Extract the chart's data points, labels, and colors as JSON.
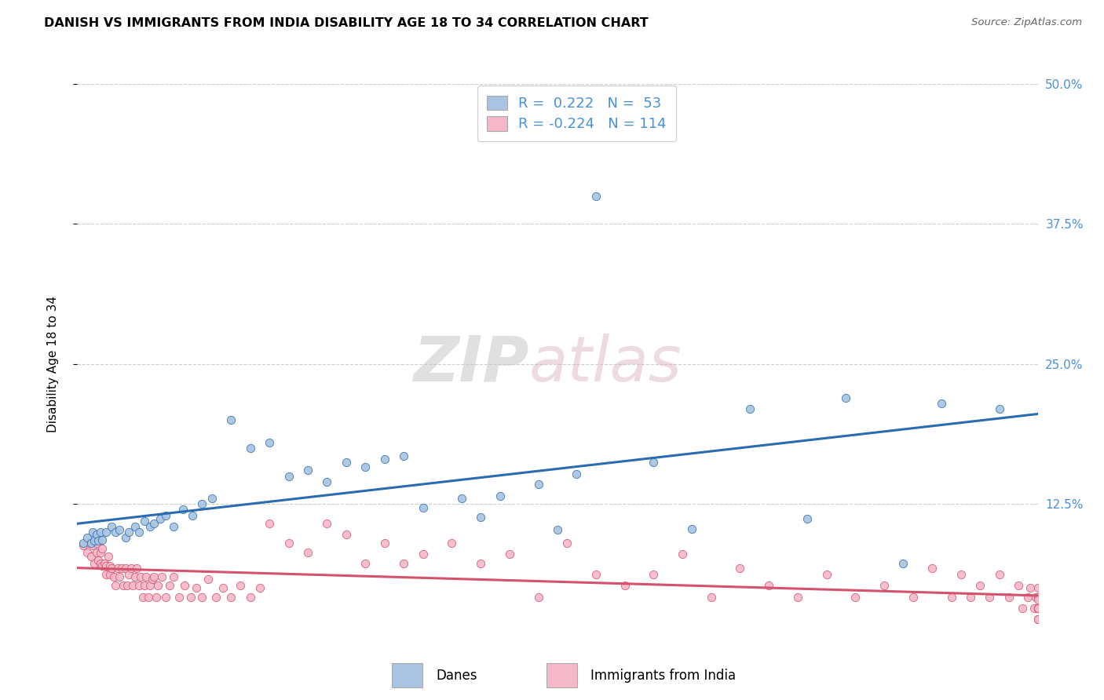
{
  "title": "DANISH VS IMMIGRANTS FROM INDIA DISABILITY AGE 18 TO 34 CORRELATION CHART",
  "source": "Source: ZipAtlas.com",
  "ylabel": "Disability Age 18 to 34",
  "xlim": [
    0.0,
    0.5
  ],
  "ylim": [
    0.0,
    0.5
  ],
  "danes_color": "#a8c4e0",
  "danes_line_color": "#2b6cb0",
  "india_color": "#f4b8c8",
  "india_line_color": "#d4526e",
  "right_tick_color": "#4a90d9",
  "legend_danes_label": "Danes",
  "legend_india_label": "Immigrants from India",
  "danes_R": 0.222,
  "danes_N": 53,
  "india_R": -0.224,
  "india_N": 114,
  "watermark_zip": "ZIP",
  "watermark_atlas": "atlas",
  "danes_scatter_x": [
    0.003,
    0.005,
    0.007,
    0.008,
    0.009,
    0.01,
    0.011,
    0.012,
    0.013,
    0.015,
    0.018,
    0.02,
    0.022,
    0.025,
    0.027,
    0.03,
    0.032,
    0.035,
    0.038,
    0.04,
    0.043,
    0.046,
    0.05,
    0.055,
    0.06,
    0.065,
    0.07,
    0.08,
    0.09,
    0.1,
    0.11,
    0.12,
    0.13,
    0.14,
    0.15,
    0.16,
    0.17,
    0.18,
    0.2,
    0.21,
    0.22,
    0.24,
    0.25,
    0.26,
    0.27,
    0.3,
    0.32,
    0.35,
    0.38,
    0.4,
    0.43,
    0.45,
    0.48
  ],
  "danes_scatter_y": [
    0.09,
    0.095,
    0.09,
    0.1,
    0.092,
    0.098,
    0.092,
    0.1,
    0.093,
    0.1,
    0.105,
    0.1,
    0.102,
    0.095,
    0.1,
    0.105,
    0.1,
    0.11,
    0.105,
    0.108,
    0.112,
    0.115,
    0.105,
    0.12,
    0.115,
    0.125,
    0.13,
    0.2,
    0.175,
    0.18,
    0.15,
    0.155,
    0.145,
    0.162,
    0.158,
    0.165,
    0.168,
    0.122,
    0.13,
    0.113,
    0.132,
    0.143,
    0.102,
    0.152,
    0.4,
    0.162,
    0.103,
    0.21,
    0.112,
    0.22,
    0.072,
    0.215,
    0.21
  ],
  "india_scatter_x": [
    0.003,
    0.005,
    0.006,
    0.007,
    0.008,
    0.009,
    0.01,
    0.01,
    0.011,
    0.012,
    0.012,
    0.013,
    0.013,
    0.014,
    0.015,
    0.015,
    0.016,
    0.017,
    0.017,
    0.018,
    0.019,
    0.02,
    0.021,
    0.022,
    0.023,
    0.024,
    0.025,
    0.026,
    0.027,
    0.028,
    0.029,
    0.03,
    0.031,
    0.032,
    0.033,
    0.034,
    0.035,
    0.036,
    0.037,
    0.038,
    0.039,
    0.04,
    0.041,
    0.042,
    0.044,
    0.046,
    0.048,
    0.05,
    0.053,
    0.056,
    0.059,
    0.062,
    0.065,
    0.068,
    0.072,
    0.076,
    0.08,
    0.085,
    0.09,
    0.095,
    0.1,
    0.11,
    0.12,
    0.13,
    0.14,
    0.15,
    0.16,
    0.17,
    0.18,
    0.195,
    0.21,
    0.225,
    0.24,
    0.255,
    0.27,
    0.285,
    0.3,
    0.315,
    0.33,
    0.345,
    0.36,
    0.375,
    0.39,
    0.405,
    0.42,
    0.435,
    0.445,
    0.455,
    0.46,
    0.465,
    0.47,
    0.475,
    0.48,
    0.485,
    0.49,
    0.492,
    0.495,
    0.496,
    0.498,
    0.499,
    0.5,
    0.5,
    0.5,
    0.5,
    0.5,
    0.5,
    0.5,
    0.5,
    0.5,
    0.5,
    0.5,
    0.5,
    0.5,
    0.5
  ],
  "india_scatter_y": [
    0.088,
    0.082,
    0.09,
    0.078,
    0.088,
    0.072,
    0.09,
    0.082,
    0.075,
    0.072,
    0.082,
    0.07,
    0.085,
    0.072,
    0.07,
    0.062,
    0.078,
    0.07,
    0.062,
    0.068,
    0.06,
    0.052,
    0.068,
    0.06,
    0.068,
    0.052,
    0.068,
    0.052,
    0.062,
    0.068,
    0.052,
    0.06,
    0.068,
    0.052,
    0.06,
    0.042,
    0.052,
    0.06,
    0.042,
    0.052,
    0.058,
    0.06,
    0.042,
    0.052,
    0.06,
    0.042,
    0.052,
    0.06,
    0.042,
    0.052,
    0.042,
    0.05,
    0.042,
    0.058,
    0.042,
    0.05,
    0.042,
    0.052,
    0.042,
    0.05,
    0.108,
    0.09,
    0.082,
    0.108,
    0.098,
    0.072,
    0.09,
    0.072,
    0.08,
    0.09,
    0.072,
    0.08,
    0.042,
    0.09,
    0.062,
    0.052,
    0.062,
    0.08,
    0.042,
    0.068,
    0.052,
    0.042,
    0.062,
    0.042,
    0.052,
    0.042,
    0.068,
    0.042,
    0.062,
    0.042,
    0.052,
    0.042,
    0.062,
    0.042,
    0.052,
    0.032,
    0.042,
    0.05,
    0.032,
    0.042,
    0.05,
    0.032,
    0.042,
    0.032,
    0.042,
    0.032,
    0.042,
    0.032,
    0.022,
    0.04,
    0.032,
    0.022,
    0.032,
    0.022
  ]
}
